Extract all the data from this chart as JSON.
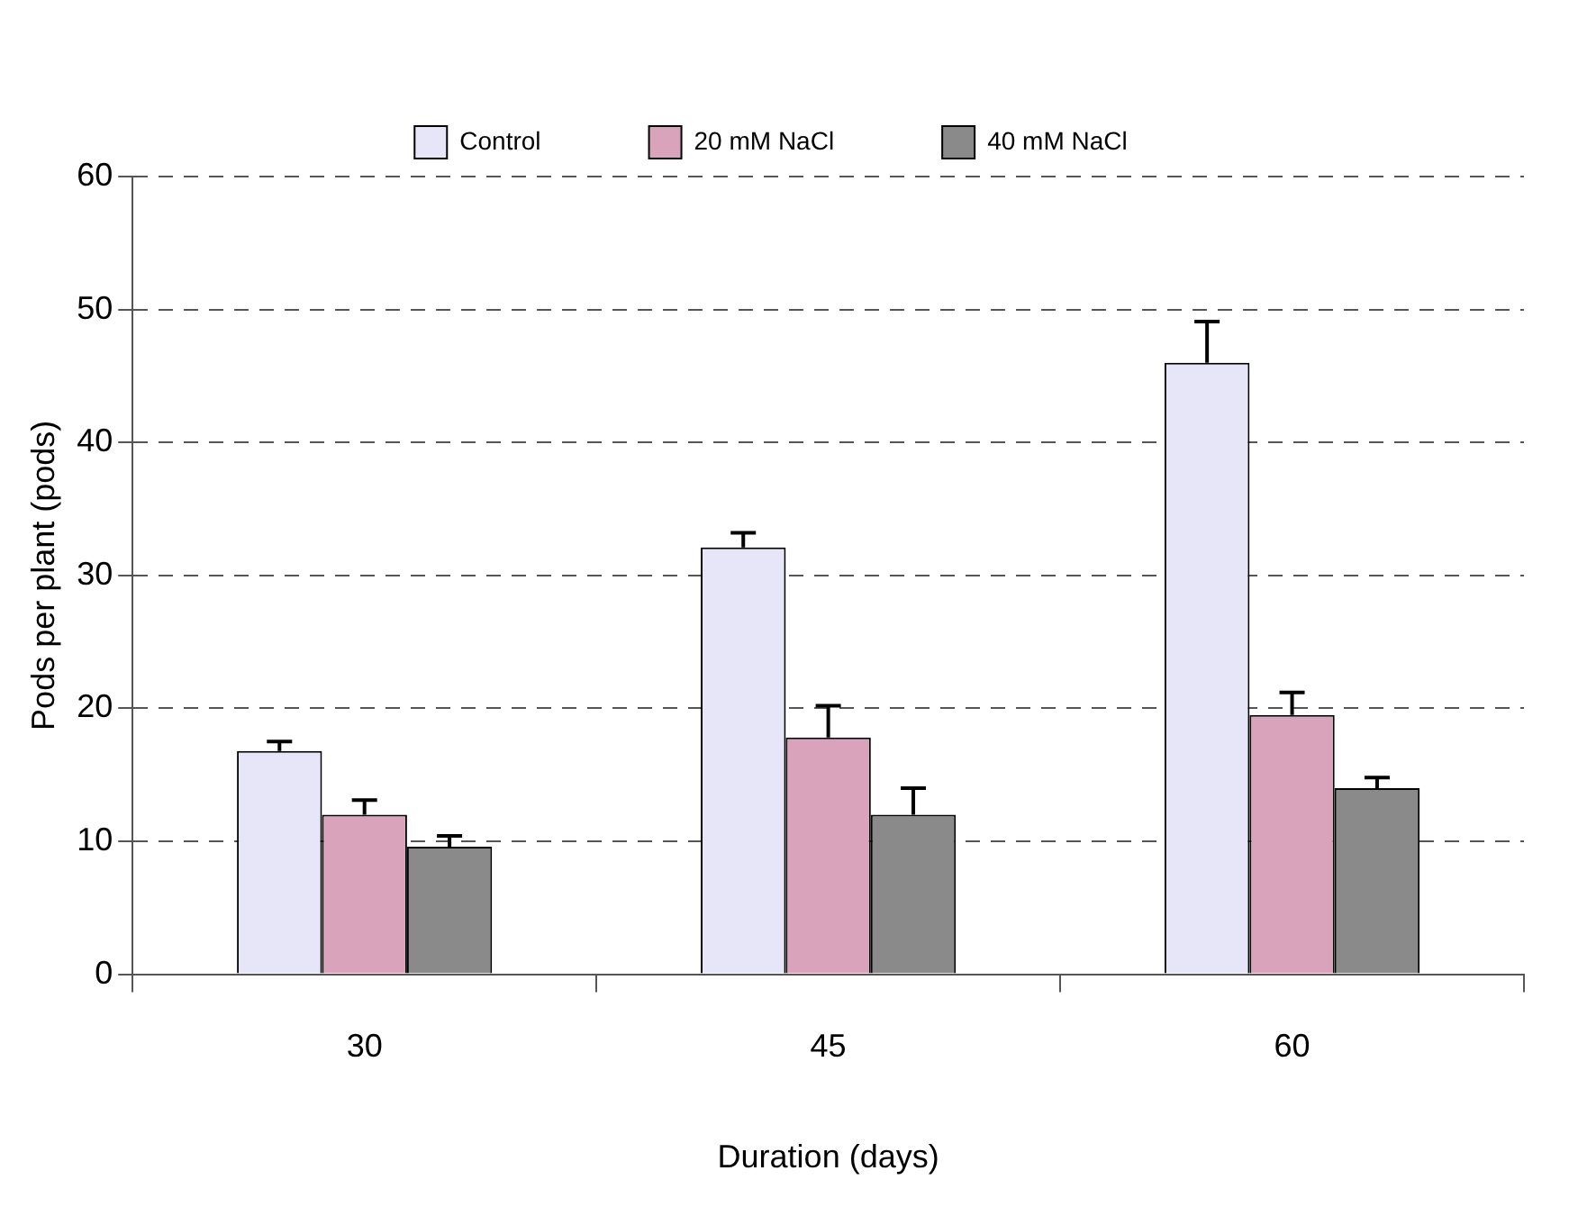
{
  "chart_data": {
    "type": "bar",
    "xlabel": "Duration (days)",
    "ylabel": "Pods per plant (pods)",
    "categories": [
      "30",
      "45",
      "60"
    ],
    "series": [
      {
        "name": "Control",
        "color": "#e6e6f8",
        "values": [
          16.8,
          32.1,
          46.0
        ],
        "errors": [
          [
            16.8,
            17.5
          ],
          [
            32.1,
            33.2
          ],
          [
            46.0,
            49.1
          ]
        ]
      },
      {
        "name": "20 mM NaCl",
        "color": "#d9a3bc",
        "values": [
          12.0,
          17.8,
          19.5
        ],
        "errors": [
          [
            12.0,
            13.1
          ],
          [
            17.8,
            20.2
          ],
          [
            19.5,
            21.2
          ]
        ]
      },
      {
        "name": "40 mM NaCl",
        "color": "#8a8a8a",
        "values": [
          9.6,
          12.0,
          14.0
        ],
        "errors": [
          [
            9.6,
            10.4
          ],
          [
            12.0,
            14.0
          ],
          [
            14.0,
            14.8
          ]
        ]
      }
    ],
    "ylim": [
      0,
      60
    ],
    "yticks": [
      0,
      10,
      20,
      30,
      40,
      50,
      60
    ],
    "grid": "y",
    "legend": "top"
  }
}
